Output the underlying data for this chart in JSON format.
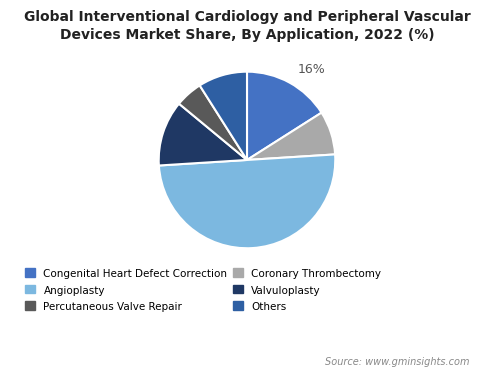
{
  "title": "Global Interventional Cardiology and Peripheral Vascular\nDevices Market Share, By Application, 2022 (%)",
  "labels": [
    "Congenital Heart Defect Correction",
    "Coronary Thrombectomy",
    "Angioplasty",
    "Valvuloplasty",
    "Percutaneous Valve Repair",
    "Others"
  ],
  "values": [
    16,
    8,
    50,
    12,
    5,
    9
  ],
  "colors": [
    "#4472C4",
    "#A9A9A9",
    "#7CB8E0",
    "#1F3864",
    "#595959",
    "#2E5FA3"
  ],
  "annotation_label": "16%",
  "background_color": "#FFFFFF",
  "source_text": "Source: www.gminsights.com",
  "legend_ncol": 2,
  "title_fontsize": 10,
  "legend_fontsize": 7.5,
  "source_fontsize": 7
}
